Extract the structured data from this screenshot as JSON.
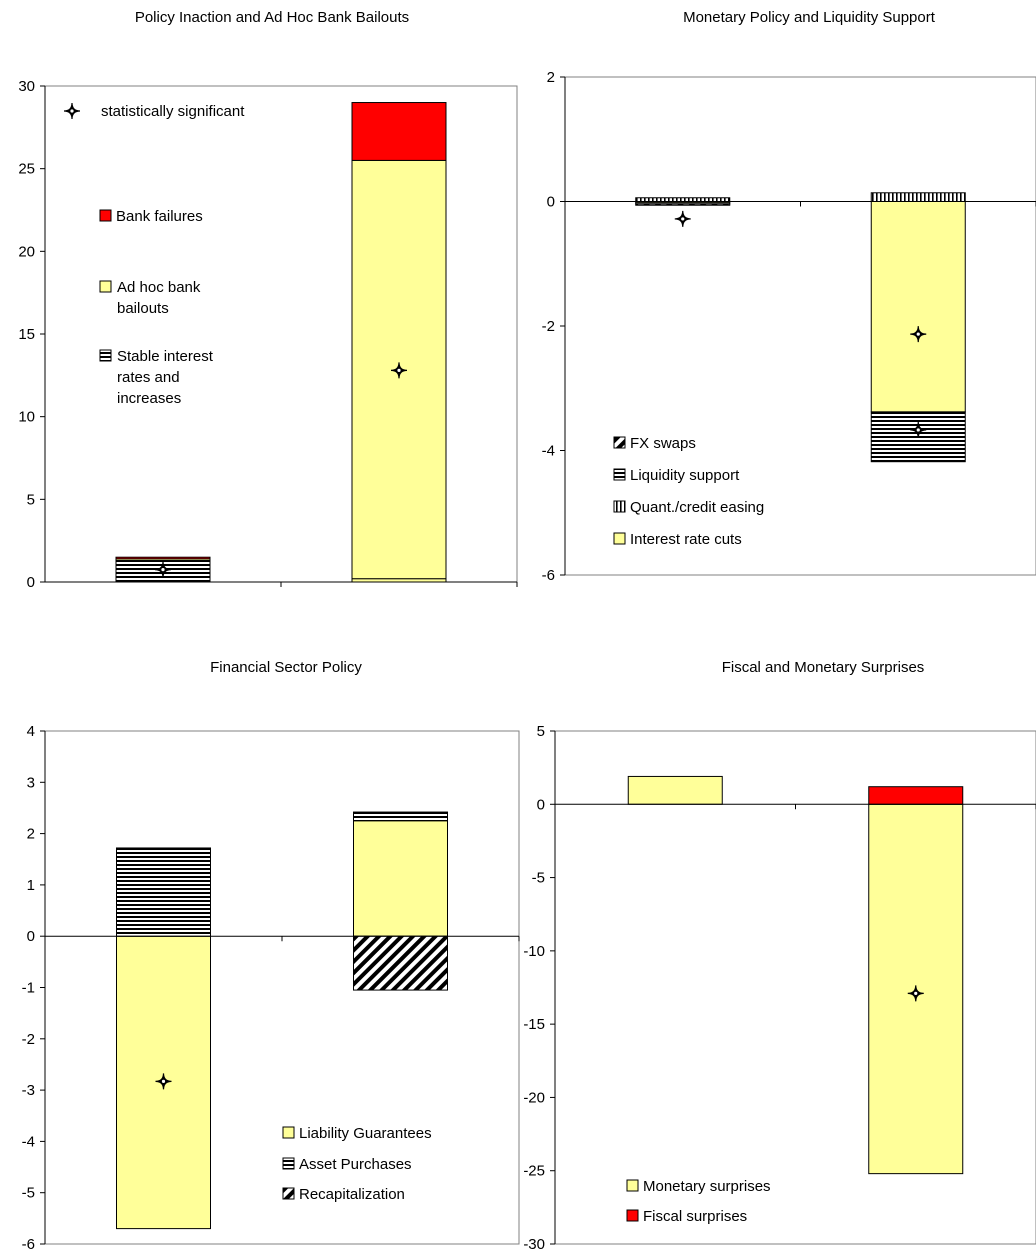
{
  "chart_data": [
    {
      "type": "bar",
      "stacked": true,
      "title": "Policy Inaction and Ad Hoc Bank Bailouts",
      "ylim": [
        0,
        30
      ],
      "yticks": [
        0,
        5,
        10,
        15,
        20,
        25,
        30
      ],
      "grid": false,
      "legend_position": "top-left",
      "categories": [
        "",
        ""
      ],
      "series": [
        {
          "name": "Stable interest rates and increases",
          "pattern": "hstripe",
          "color": "#000000",
          "values": [
            1.3,
            0
          ]
        },
        {
          "name": "",
          "pattern": "solid",
          "color": "#ffff99",
          "values": [
            0.1,
            0.2
          ]
        },
        {
          "name": "Ad hoc bank bailouts",
          "pattern": "solid",
          "color": "#ffff99",
          "values": [
            0,
            25.3
          ]
        },
        {
          "name": "Bank failures",
          "pattern": "solid",
          "color": "#ff0000",
          "values": [
            0.1,
            3.5
          ]
        }
      ],
      "legend": [
        {
          "label": "statistically significant",
          "marker": "sig"
        },
        {
          "label": "Bank failures",
          "series": 3
        },
        {
          "label": "Ad hoc bank bailouts",
          "series": 2
        },
        {
          "label": "Stable interest rates and increases",
          "series": 0
        }
      ],
      "significance_markers": [
        {
          "category": 0,
          "y": 0.75
        },
        {
          "category": 1,
          "y": 12.8
        }
      ]
    },
    {
      "type": "bar",
      "stacked": true,
      "title": "Monetary Policy and Liquidity Support",
      "ylim": [
        -6,
        2
      ],
      "yticks": [
        -6,
        -4,
        -2,
        0,
        2
      ],
      "grid": false,
      "legend_position": "bottom-left",
      "categories": [
        "",
        ""
      ],
      "series": [
        {
          "name": "Interest rate cuts",
          "pattern": "solid",
          "color": "#ffff99",
          "values": [
            -0.02,
            -3.38
          ]
        },
        {
          "name": "Quant./credit easing",
          "pattern": "vstripe",
          "color": "#000000",
          "values": [
            0.06,
            0.14
          ]
        },
        {
          "name": "Liquidity support",
          "pattern": "hstripe",
          "color": "#000000",
          "values": [
            -0.02,
            -0.8
          ]
        },
        {
          "name": "FX swaps",
          "pattern": "diagonal",
          "color": "#000000",
          "values": [
            -0.02,
            0
          ]
        }
      ],
      "legend": [
        {
          "label": "FX swaps",
          "series": 3
        },
        {
          "label": "Liquidity support",
          "series": 2
        },
        {
          "label": "Quant./credit easing",
          "series": 1
        },
        {
          "label": "Interest rate cuts",
          "series": 0
        }
      ],
      "significance_markers": [
        {
          "category": 0,
          "y": -0.28
        },
        {
          "category": 1,
          "y": -2.13
        },
        {
          "category": 1,
          "y": -3.67
        }
      ]
    },
    {
      "type": "bar",
      "stacked": true,
      "title": "Financial Sector Policy",
      "ylim": [
        -6,
        4
      ],
      "yticks": [
        -6,
        -5,
        -4,
        -3,
        -2,
        -1,
        0,
        1,
        2,
        3,
        4
      ],
      "grid": false,
      "legend_position": "bottom-right",
      "categories": [
        "",
        ""
      ],
      "series": [
        {
          "name": "Liability Guarantees",
          "pattern": "solid",
          "color": "#ffff99",
          "values": [
            -5.7,
            2.25
          ]
        },
        {
          "name": "Asset Purchases",
          "pattern": "hstripe",
          "color": "#000000",
          "values": [
            1.72,
            0.17
          ]
        },
        {
          "name": "Recapitalization",
          "pattern": "diagonal",
          "color": "#000000",
          "values": [
            0,
            -1.05
          ]
        }
      ],
      "legend": [
        {
          "label": "Liability Guarantees",
          "series": 0
        },
        {
          "label": "Asset Purchases",
          "series": 1
        },
        {
          "label": "Recapitalization",
          "series": 2
        }
      ],
      "significance_markers": [
        {
          "category": 0,
          "y": -2.83
        }
      ]
    },
    {
      "type": "bar",
      "stacked": true,
      "title": "Fiscal and Monetary Surprises",
      "ylim": [
        -30,
        5
      ],
      "yticks": [
        -30,
        -25,
        -20,
        -15,
        -10,
        -5,
        0,
        5
      ],
      "grid": false,
      "legend_position": "bottom-left",
      "categories": [
        "",
        ""
      ],
      "series": [
        {
          "name": "Monetary surprises",
          "pattern": "solid",
          "color": "#ffff99",
          "values": [
            1.9,
            -25.2
          ]
        },
        {
          "name": "Fiscal surprises",
          "pattern": "solid",
          "color": "#ff0000",
          "values": [
            0,
            1.2
          ]
        }
      ],
      "legend": [
        {
          "label": "Monetary surprises",
          "series": 0
        },
        {
          "label": "Fiscal surprises",
          "series": 1
        }
      ],
      "significance_markers": [
        {
          "category": 1,
          "y": -12.9
        }
      ]
    }
  ]
}
